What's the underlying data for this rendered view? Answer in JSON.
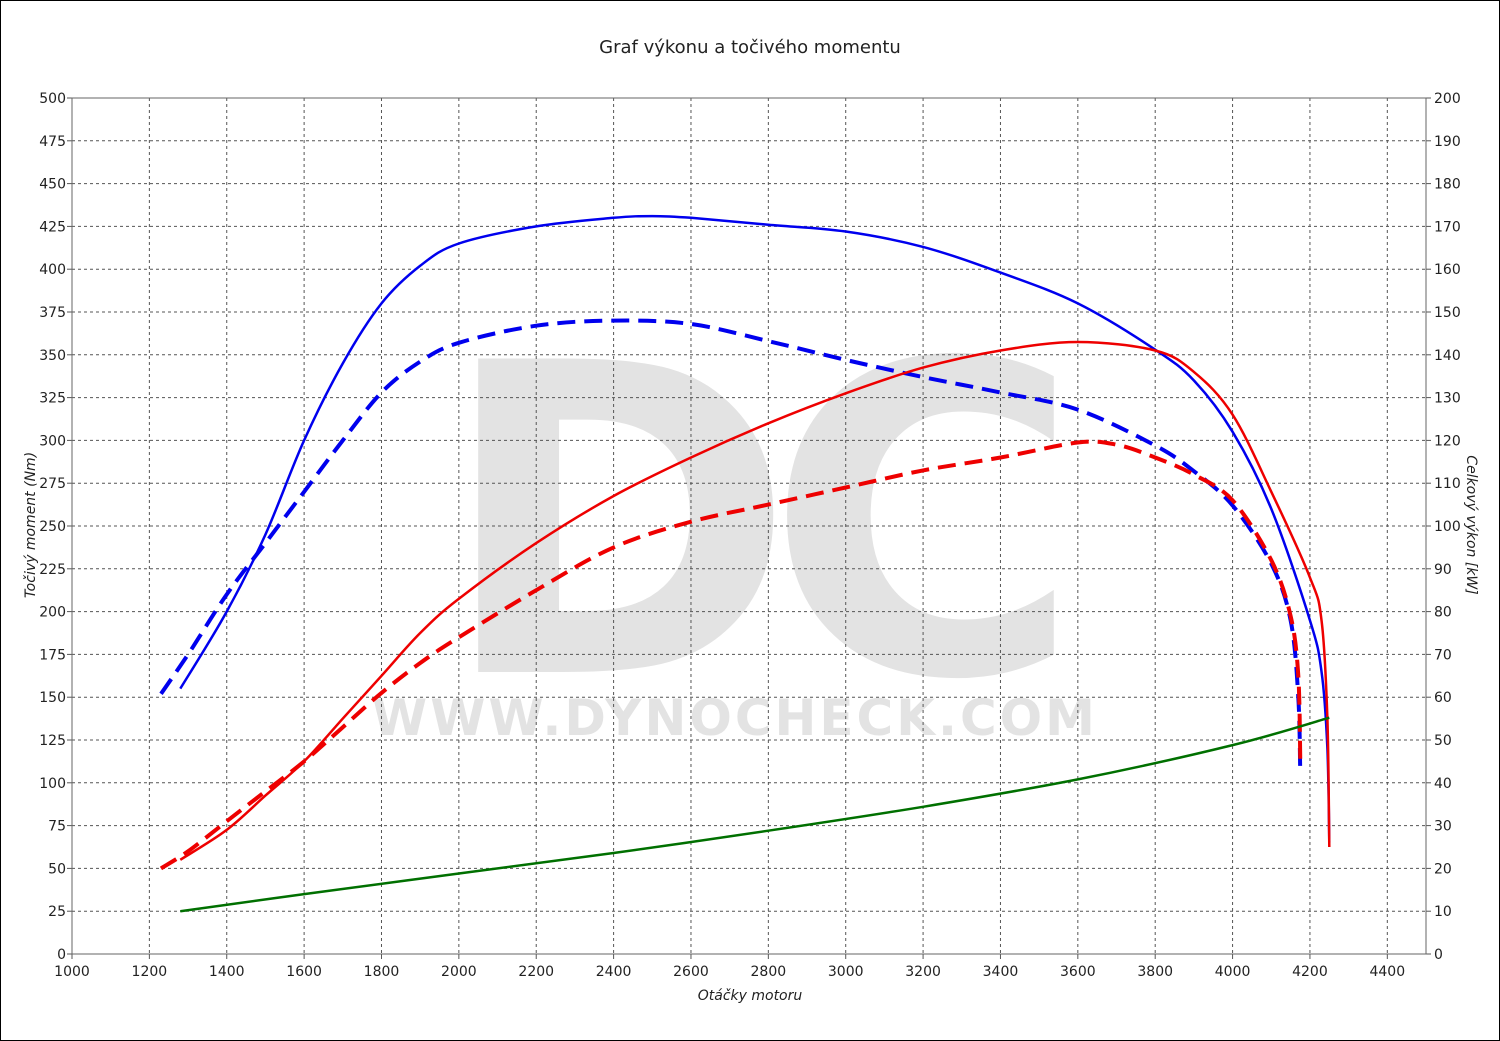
{
  "chart_data": {
    "type": "line",
    "title": "Graf výkonu a točivého momentu",
    "xlabel": "Otáčky motoru",
    "ylabel_left": "Točivý moment (Nm)",
    "ylabel_right": "Celkový výkon [kW]",
    "watermark": {
      "logo": "DC",
      "url": "WWW.DYNOCHECK.COM"
    },
    "xlim": [
      1000,
      4500
    ],
    "ylim_left": [
      0,
      500
    ],
    "ylim_right": [
      0,
      200
    ],
    "grid": true,
    "x_ticks": [
      "1000",
      "1200",
      "1400",
      "1600",
      "1800",
      "2000",
      "2200",
      "2400",
      "2600",
      "2800",
      "3000",
      "3200",
      "3400",
      "3600",
      "3800",
      "4000",
      "4200",
      "4400"
    ],
    "y_left_ticks": [
      "0",
      "25",
      "50",
      "75",
      "100",
      "125",
      "150",
      "175",
      "200",
      "225",
      "250",
      "275",
      "300",
      "325",
      "350",
      "375",
      "400",
      "425",
      "450",
      "475",
      "500"
    ],
    "y_right_ticks": [
      "0",
      "10",
      "20",
      "30",
      "40",
      "50",
      "60",
      "70",
      "80",
      "90",
      "100",
      "110",
      "120",
      "130",
      "140",
      "150",
      "160",
      "170",
      "180",
      "190",
      "200"
    ],
    "series": [
      {
        "axis": "left",
        "color": "#0000ee",
        "dash": false,
        "points": [
          [
            1280,
            155
          ],
          [
            1400,
            200
          ],
          [
            1500,
            245
          ],
          [
            1600,
            300
          ],
          [
            1700,
            345
          ],
          [
            1800,
            380
          ],
          [
            1900,
            402
          ],
          [
            2000,
            415
          ],
          [
            2200,
            425
          ],
          [
            2400,
            430
          ],
          [
            2500,
            431
          ],
          [
            2600,
            430
          ],
          [
            2800,
            426
          ],
          [
            3000,
            422
          ],
          [
            3200,
            413
          ],
          [
            3400,
            398
          ],
          [
            3600,
            380
          ],
          [
            3800,
            353
          ],
          [
            3900,
            335
          ],
          [
            4000,
            305
          ],
          [
            4100,
            260
          ],
          [
            4200,
            195
          ],
          [
            4230,
            165
          ],
          [
            4245,
            120
          ],
          [
            4250,
            65
          ]
        ]
      },
      {
        "axis": "left",
        "color": "#0000ee",
        "dash": true,
        "points": [
          [
            1230,
            152
          ],
          [
            1300,
            175
          ],
          [
            1400,
            210
          ],
          [
            1500,
            240
          ],
          [
            1600,
            270
          ],
          [
            1700,
            300
          ],
          [
            1800,
            328
          ],
          [
            1900,
            346
          ],
          [
            2000,
            357
          ],
          [
            2200,
            367
          ],
          [
            2400,
            370
          ],
          [
            2600,
            368
          ],
          [
            2800,
            358
          ],
          [
            3000,
            347
          ],
          [
            3200,
            337
          ],
          [
            3400,
            328
          ],
          [
            3600,
            318
          ],
          [
            3800,
            297
          ],
          [
            3900,
            282
          ],
          [
            4000,
            262
          ],
          [
            4100,
            228
          ],
          [
            4150,
            195
          ],
          [
            4170,
            150
          ],
          [
            4175,
            105
          ]
        ]
      },
      {
        "axis": "right",
        "color": "#ee0000",
        "dash": false,
        "points": [
          [
            1280,
            22
          ],
          [
            1400,
            29
          ],
          [
            1500,
            37
          ],
          [
            1600,
            45
          ],
          [
            1700,
            55
          ],
          [
            1800,
            65
          ],
          [
            1900,
            75
          ],
          [
            2000,
            83
          ],
          [
            2200,
            96
          ],
          [
            2400,
            107
          ],
          [
            2600,
            116
          ],
          [
            2800,
            124
          ],
          [
            3000,
            131
          ],
          [
            3200,
            137
          ],
          [
            3400,
            141
          ],
          [
            3600,
            143
          ],
          [
            3800,
            141
          ],
          [
            3900,
            136
          ],
          [
            4000,
            126
          ],
          [
            4100,
            108
          ],
          [
            4200,
            88
          ],
          [
            4230,
            78
          ],
          [
            4245,
            55
          ],
          [
            4250,
            25
          ]
        ]
      },
      {
        "axis": "right",
        "color": "#ee0000",
        "dash": true,
        "points": [
          [
            1230,
            20
          ],
          [
            1300,
            24
          ],
          [
            1400,
            31
          ],
          [
            1500,
            38
          ],
          [
            1600,
            45
          ],
          [
            1700,
            53
          ],
          [
            1800,
            61
          ],
          [
            1900,
            68
          ],
          [
            2000,
            74
          ],
          [
            2200,
            85
          ],
          [
            2400,
            95
          ],
          [
            2600,
            101
          ],
          [
            2800,
            105
          ],
          [
            3000,
            109
          ],
          [
            3200,
            113
          ],
          [
            3400,
            116
          ],
          [
            3600,
            119.5
          ],
          [
            3700,
            119
          ],
          [
            3800,
            116
          ],
          [
            3900,
            112
          ],
          [
            4000,
            106
          ],
          [
            4100,
            92
          ],
          [
            4150,
            79
          ],
          [
            4170,
            65
          ],
          [
            4175,
            45
          ]
        ]
      },
      {
        "axis": "left",
        "color": "#007000",
        "dash": false,
        "points": [
          [
            1280,
            25
          ],
          [
            1600,
            35
          ],
          [
            2000,
            47
          ],
          [
            2400,
            59
          ],
          [
            2800,
            72
          ],
          [
            3200,
            86
          ],
          [
            3600,
            102
          ],
          [
            4000,
            122
          ],
          [
            4250,
            138
          ]
        ]
      }
    ]
  }
}
